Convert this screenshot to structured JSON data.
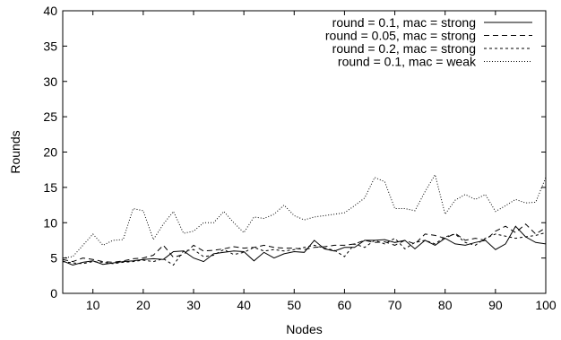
{
  "chart_data": {
    "type": "line",
    "xlabel": "Nodes",
    "ylabel": "Rounds",
    "xlim": [
      4,
      100
    ],
    "ylim": [
      0,
      40
    ],
    "xticks": [
      10,
      20,
      30,
      40,
      50,
      60,
      70,
      80,
      90,
      100
    ],
    "yticks": [
      0,
      5,
      10,
      15,
      20,
      25,
      30,
      35,
      40
    ],
    "grid": false,
    "legend_position": "top-right",
    "x": [
      4,
      6,
      8,
      10,
      12,
      14,
      16,
      18,
      20,
      22,
      24,
      26,
      28,
      30,
      32,
      34,
      36,
      38,
      40,
      42,
      44,
      46,
      48,
      50,
      52,
      54,
      56,
      58,
      60,
      62,
      64,
      66,
      68,
      70,
      72,
      74,
      76,
      78,
      80,
      82,
      84,
      86,
      88,
      90,
      92,
      94,
      96,
      98,
      100
    ],
    "series": [
      {
        "name": "round = 0.1, mac = strong",
        "dash": "solid",
        "values": [
          4.6,
          4.0,
          4.4,
          4.6,
          4.1,
          4.3,
          4.5,
          4.6,
          4.8,
          4.9,
          4.8,
          5.9,
          6.0,
          5.0,
          4.5,
          5.6,
          5.8,
          6.0,
          5.9,
          4.6,
          5.8,
          5.0,
          5.6,
          5.9,
          5.8,
          7.5,
          6.3,
          6.0,
          6.5,
          6.5,
          7.5,
          7.5,
          7.6,
          7.2,
          7.5,
          6.3,
          7.5,
          6.8,
          7.8,
          7.0,
          6.8,
          7.2,
          7.5,
          6.2,
          7.0,
          9.5,
          8.0,
          7.2,
          7.0
        ]
      },
      {
        "name": "round = 0.05, mac = strong",
        "dash": "6,4",
        "values": [
          4.8,
          4.5,
          5.0,
          4.8,
          4.5,
          4.4,
          4.6,
          4.9,
          5.0,
          5.4,
          6.8,
          5.1,
          5.5,
          6.8,
          6.0,
          6.1,
          6.3,
          6.6,
          6.4,
          6.5,
          6.8,
          6.5,
          6.4,
          6.4,
          6.2,
          6.5,
          6.6,
          6.8,
          6.8,
          7.0,
          7.5,
          7.2,
          7.3,
          6.8,
          7.5,
          7.0,
          8.4,
          8.2,
          7.8,
          8.5,
          7.5,
          7.8,
          7.5,
          8.8,
          9.5,
          8.6,
          9.8,
          8.4,
          9.3
        ]
      },
      {
        "name": "round = 0.2, mac = strong",
        "dash": "3,3",
        "values": [
          4.5,
          4.3,
          4.2,
          4.5,
          4.4,
          4.2,
          4.4,
          4.5,
          4.7,
          4.5,
          4.9,
          4.0,
          6.0,
          6.2,
          5.2,
          5.4,
          6.2,
          5.5,
          5.8,
          6.5,
          6.0,
          6.2,
          6.0,
          6.2,
          6.5,
          6.8,
          6.4,
          6.1,
          5.2,
          7.0,
          6.5,
          7.5,
          7.0,
          7.8,
          6.3,
          7.2,
          7.5,
          7.0,
          8.0,
          8.4,
          7.2,
          6.8,
          7.8,
          8.4,
          8.1,
          7.8,
          8.0,
          8.2,
          8.6
        ]
      },
      {
        "name": "round = 0.1, mac = weak",
        "dash": "1,2",
        "values": [
          5.0,
          5.2,
          6.8,
          8.4,
          6.8,
          7.5,
          7.6,
          12.0,
          11.7,
          7.6,
          9.8,
          11.6,
          8.5,
          8.8,
          10.0,
          10.0,
          11.6,
          10.0,
          8.6,
          10.8,
          10.6,
          11.2,
          12.5,
          11.0,
          10.4,
          10.8,
          11.0,
          11.2,
          11.4,
          12.4,
          13.5,
          16.4,
          15.8,
          12.0,
          12.0,
          11.7,
          14.4,
          16.8,
          11.2,
          13.2,
          14.0,
          13.3,
          14.0,
          11.6,
          12.4,
          13.3,
          12.8,
          12.9,
          16.4
        ]
      }
    ]
  }
}
